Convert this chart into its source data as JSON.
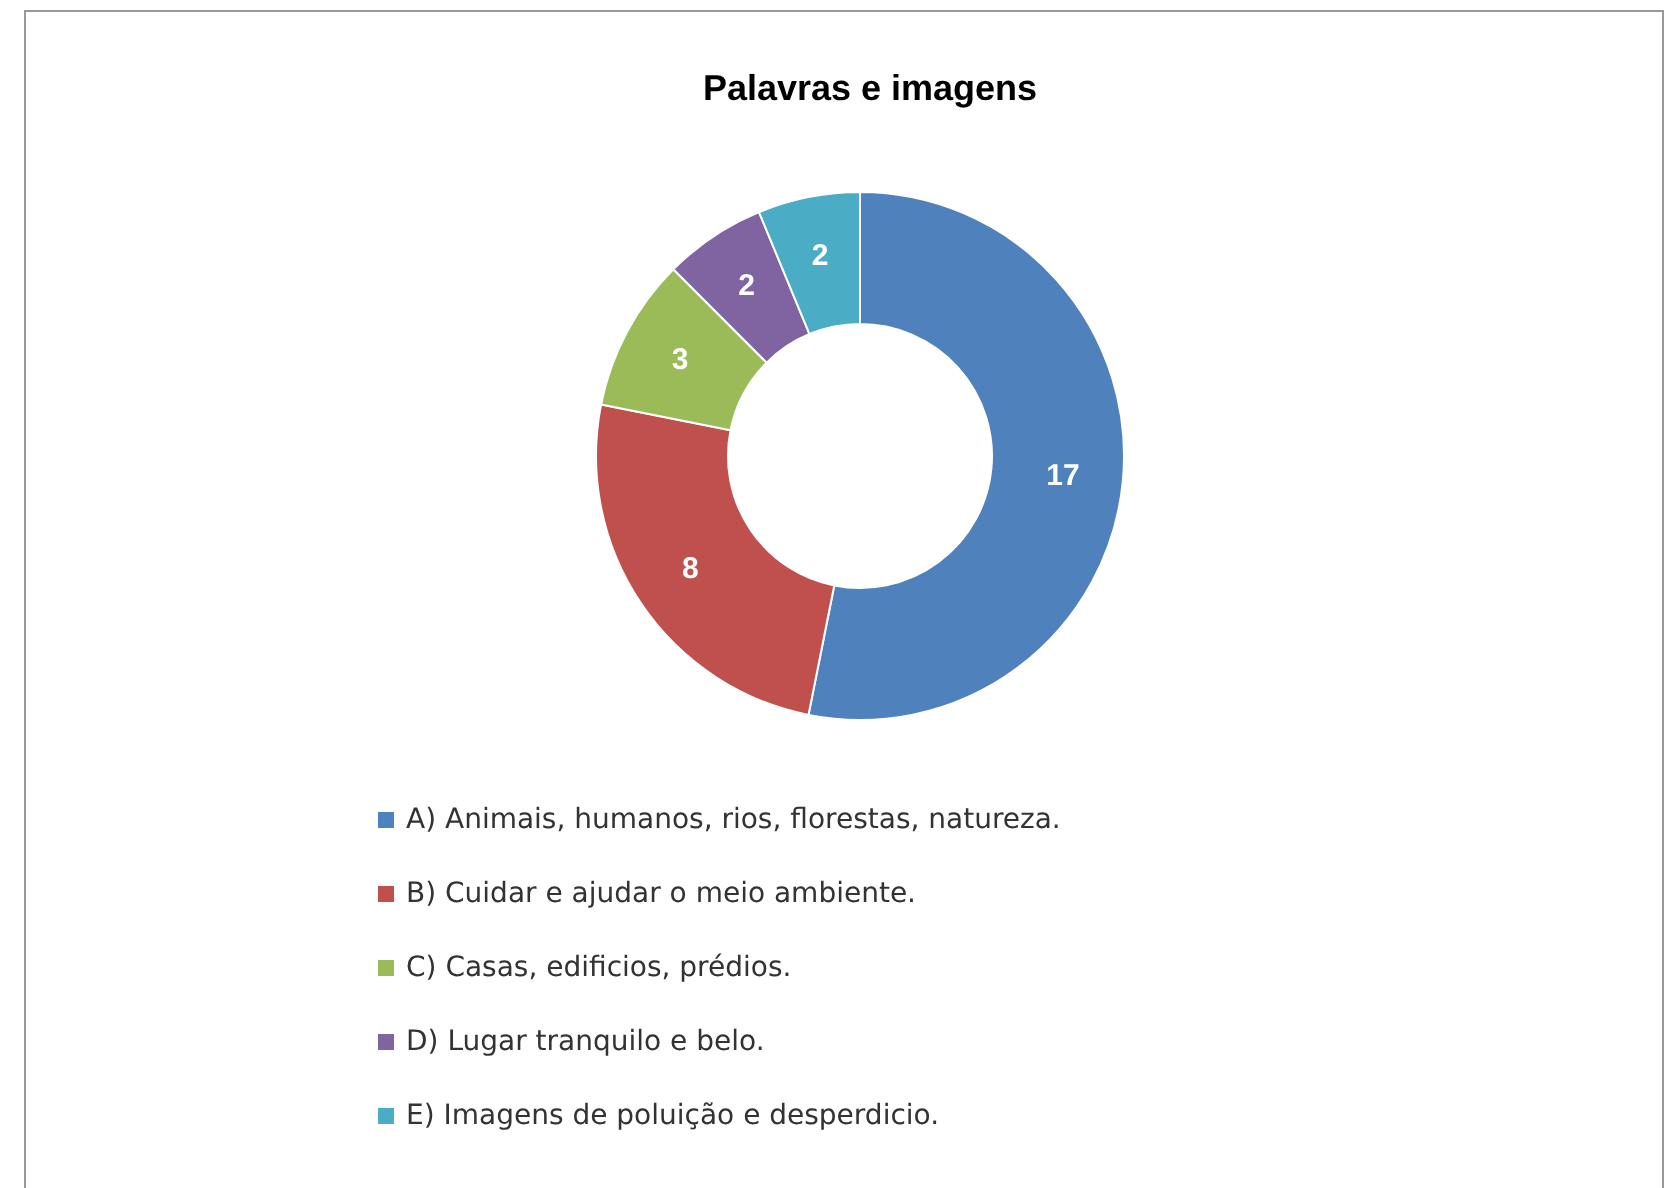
{
  "chart_data": {
    "type": "donut",
    "title": "Palavras e imagens",
    "categories": [
      "A) Animais, humanos, rios, florestas, natureza.",
      "B) Cuidar e ajudar o meio ambiente.",
      "C) Casas, edificios, prédios.",
      "D) Lugar tranquilo e belo.",
      "E) Imagens de poluição e desperdicio."
    ],
    "values": [
      17,
      8,
      3,
      2,
      2
    ],
    "colors": [
      "#4f81bd",
      "#c0504d",
      "#9bbb59",
      "#8064a2",
      "#4bacc6"
    ],
    "data_labels": true,
    "legend": "bottom"
  }
}
